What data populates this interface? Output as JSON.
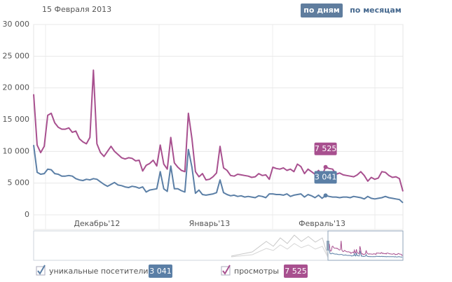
{
  "controls": {
    "date": "15 Февраля 2013",
    "buttons": [
      "по дням",
      "по месяцам"
    ]
  },
  "chart_data": {
    "type": "line",
    "categories": [
      null,
      null,
      null,
      null,
      null,
      null,
      null,
      null,
      null,
      null,
      null,
      null,
      null,
      null,
      null,
      null,
      null,
      null,
      "Декабрь'12",
      null,
      null,
      null,
      null,
      null,
      null,
      null,
      null,
      null,
      null,
      null,
      null,
      null,
      null,
      null,
      null,
      null,
      null,
      null,
      null,
      null,
      null,
      null,
      null,
      null,
      null,
      null,
      null,
      null,
      null,
      null,
      "Январь'13",
      null,
      null,
      null,
      null,
      null,
      null,
      null,
      null,
      null,
      null,
      null,
      null,
      null,
      null,
      null,
      null,
      null,
      null,
      null,
      null,
      null,
      null,
      null,
      null,
      null,
      null,
      null,
      null,
      null,
      null,
      null,
      "Февраль'13",
      null,
      null,
      null,
      null,
      null,
      null,
      null,
      null,
      null,
      null,
      null,
      null,
      null,
      null,
      null,
      null,
      null,
      null,
      null,
      null,
      null,
      null,
      null
    ],
    "series": [
      {
        "name": "уникальные посетители",
        "color": "#5b7fa6",
        "values": [
          11000,
          6700,
          6400,
          6500,
          7200,
          7100,
          6500,
          6400,
          6100,
          6100,
          6200,
          6100,
          5700,
          5500,
          5400,
          5600,
          5500,
          5700,
          5600,
          5200,
          4800,
          4500,
          4800,
          5100,
          4700,
          4600,
          4400,
          4300,
          4500,
          4400,
          4200,
          4400,
          3600,
          3900,
          4000,
          4100,
          6800,
          4100,
          3700,
          7700,
          4100,
          4100,
          3800,
          3600,
          10300,
          7500,
          3400,
          3900,
          3200,
          3100,
          3200,
          3300,
          3500,
          5500,
          3500,
          3200,
          3000,
          3100,
          2900,
          3000,
          2800,
          2900,
          2800,
          2700,
          3000,
          2900,
          2700,
          3300,
          3300,
          3200,
          3200,
          3100,
          3300,
          2900,
          3100,
          3200,
          3300,
          2800,
          3200,
          3000,
          2700,
          3100,
          2600,
          3041,
          2900,
          2800,
          2800,
          2700,
          2800,
          2800,
          2700,
          2900,
          2800,
          2700,
          2500,
          2900,
          2600,
          2500,
          2600,
          2700,
          2900,
          2700,
          2600,
          2500,
          2400,
          1900
        ],
        "value_labels": [
          null,
          null,
          null,
          null,
          null,
          null,
          null,
          null,
          null,
          null,
          null,
          null,
          null,
          null,
          null,
          null,
          null,
          null,
          null,
          null,
          null,
          null,
          null,
          null,
          null,
          null,
          null,
          null,
          null,
          null,
          null,
          null,
          null,
          null,
          null,
          null,
          null,
          null,
          null,
          null,
          null,
          null,
          null,
          null,
          null,
          null,
          null,
          null,
          null,
          null,
          null,
          null,
          null,
          null,
          null,
          null,
          null,
          null,
          null,
          null,
          null,
          null,
          null,
          null,
          null,
          null,
          null,
          null,
          null,
          null,
          null,
          null,
          null,
          null,
          null,
          null,
          null,
          null,
          null,
          null,
          null,
          null,
          null,
          "3 041",
          null,
          null,
          null,
          null,
          null,
          null,
          null,
          null,
          null,
          null,
          null,
          null,
          null,
          null,
          null,
          null,
          null,
          null,
          null,
          null,
          null,
          null
        ]
      },
      {
        "name": "просмотры",
        "color": "#a8508f",
        "values": [
          19000,
          11000,
          9800,
          10800,
          15700,
          16000,
          14500,
          13800,
          13500,
          13500,
          13700,
          13000,
          13200,
          12000,
          11500,
          11200,
          12200,
          22800,
          11200,
          9800,
          9200,
          10000,
          10800,
          10000,
          9500,
          9000,
          8800,
          9000,
          8900,
          8500,
          8600,
          6900,
          7800,
          8100,
          8600,
          7700,
          11000,
          8000,
          7200,
          12200,
          8200,
          7500,
          7000,
          6800,
          16000,
          12000,
          6800,
          6000,
          6500,
          5500,
          5600,
          6000,
          6600,
          10800,
          7400,
          7000,
          6200,
          6100,
          6400,
          6300,
          6200,
          6100,
          5900,
          6000,
          6500,
          6200,
          6300,
          5600,
          7500,
          7300,
          7200,
          7400,
          7000,
          7200,
          6800,
          8000,
          7600,
          6500,
          7200,
          6800,
          6400,
          7000,
          6200,
          7525,
          7300,
          7200,
          6400,
          6600,
          6300,
          6200,
          6100,
          6000,
          6300,
          6800,
          6200,
          5300,
          5900,
          5600,
          5800,
          6800,
          6700,
          6200,
          5900,
          6000,
          5700,
          3700
        ],
        "value_labels": [
          null,
          null,
          null,
          null,
          null,
          null,
          null,
          null,
          null,
          null,
          null,
          null,
          null,
          null,
          null,
          null,
          null,
          null,
          null,
          null,
          null,
          null,
          null,
          null,
          null,
          null,
          null,
          null,
          null,
          null,
          null,
          null,
          null,
          null,
          null,
          null,
          null,
          null,
          null,
          null,
          null,
          null,
          null,
          null,
          null,
          null,
          null,
          null,
          null,
          null,
          null,
          null,
          null,
          null,
          null,
          null,
          null,
          null,
          null,
          null,
          null,
          null,
          null,
          null,
          null,
          null,
          null,
          null,
          null,
          null,
          null,
          null,
          null,
          null,
          null,
          null,
          null,
          null,
          null,
          null,
          null,
          null,
          null,
          "7 525",
          null,
          null,
          null,
          null,
          null,
          null,
          null,
          null,
          null,
          null,
          null,
          null,
          null,
          null,
          null,
          null,
          null,
          null,
          null,
          null,
          null,
          null
        ]
      }
    ],
    "ylim": [
      0,
      30000
    ],
    "yticks": [
      0,
      {
        "value": 5000,
        "label": "5 000"
      },
      {
        "value": 10000,
        "label": "10 000"
      },
      {
        "value": 15000,
        "label": "15 000"
      },
      {
        "value": 20000,
        "label": "20 000"
      },
      {
        "value": 25000,
        "label": "25 000"
      },
      {
        "value": 30000,
        "label": "30 000"
      }
    ],
    "grid": true
  }
}
